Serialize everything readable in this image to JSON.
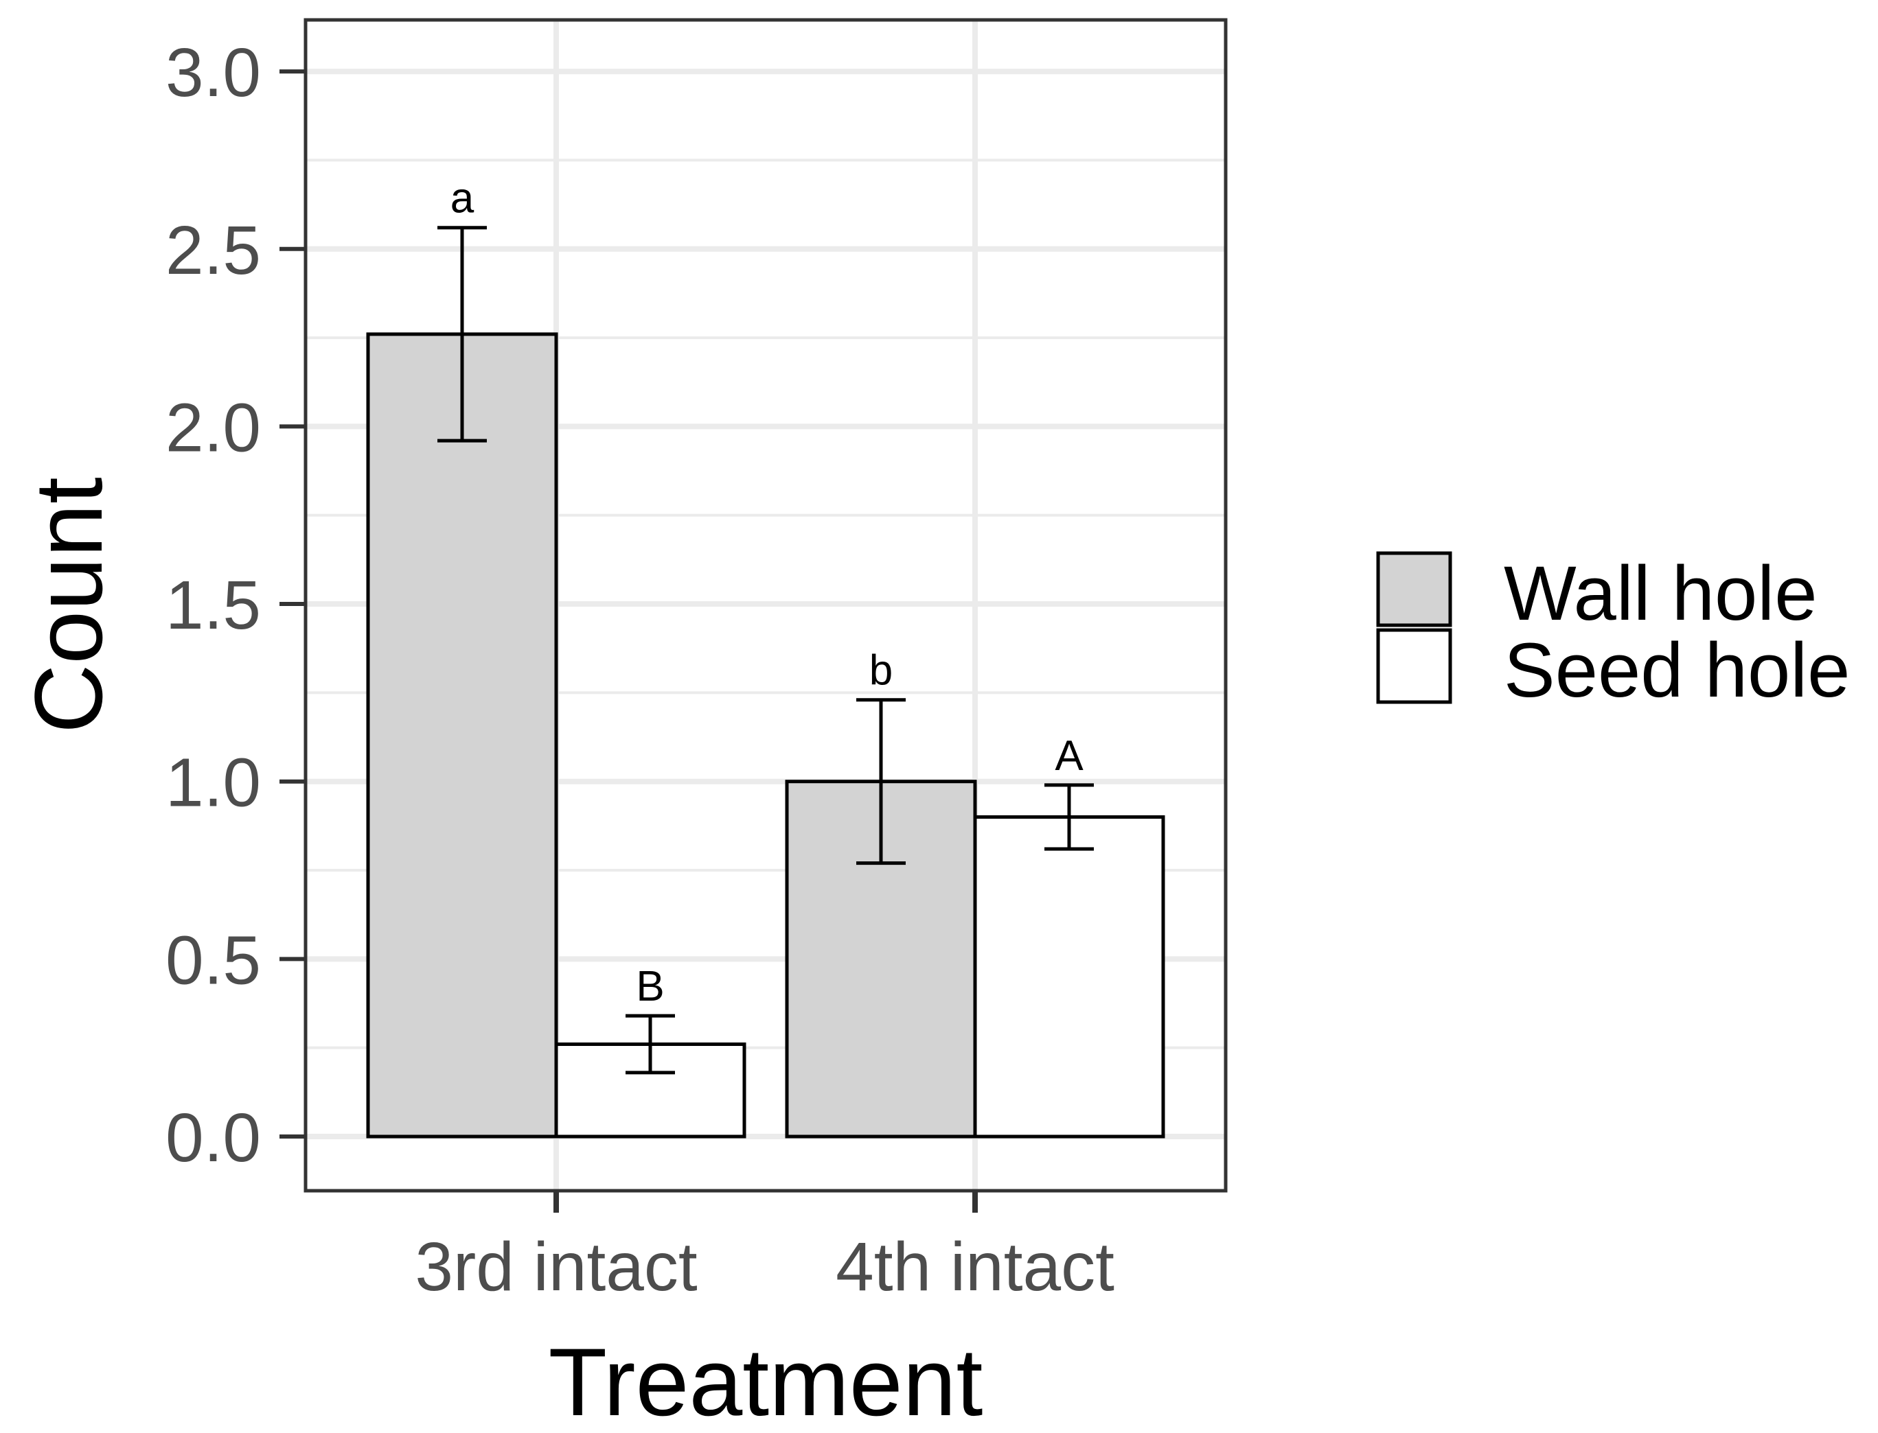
{
  "chart_data": {
    "type": "bar",
    "title": "",
    "xlabel": "Treatment",
    "ylabel": "Count",
    "ylim": [
      -0.15,
      3.15
    ],
    "yticks": [
      0.0,
      0.5,
      1.0,
      1.5,
      2.0,
      2.5,
      3.0
    ],
    "ytick_labels": [
      "0.0",
      "0.5",
      "1.0",
      "1.5",
      "2.0",
      "2.5",
      "3.0"
    ],
    "categories": [
      "3rd intact",
      "4th intact"
    ],
    "series": [
      {
        "name": "Wall hole",
        "color": "#d3d3d3",
        "values": [
          2.26,
          1.0
        ],
        "error_low": [
          1.96,
          0.77
        ],
        "error_high": [
          2.56,
          1.23
        ],
        "labels": [
          "a",
          "b"
        ]
      },
      {
        "name": "Seed hole",
        "color": "#ffffff",
        "values": [
          0.26,
          0.9
        ],
        "error_low": [
          0.18,
          0.81
        ],
        "error_high": [
          0.34,
          0.99
        ],
        "labels": [
          "B",
          "A"
        ]
      }
    ],
    "grid": true,
    "legend_position": "right"
  }
}
